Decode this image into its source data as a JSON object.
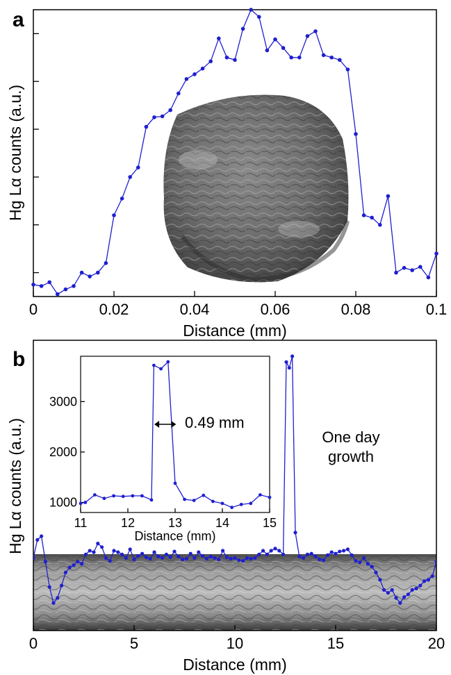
{
  "panel_a": {
    "label": "a",
    "chart_ylabel": "Hg Lα counts (a.u.)",
    "xlabel": "Distance (mm)"
  },
  "panel_b": {
    "label": "b",
    "ylabel": "Hg Lα counts (a.u.)",
    "xlabel": "Distance (mm)",
    "annotation_line1": "One day",
    "annotation_line2": "growth",
    "inset_xlabel": "Distance (mm)",
    "inset_width_label": "0.49 mm"
  },
  "colors": {
    "series": "#1f1fd0",
    "axis": "#000000"
  },
  "chart_data": [
    {
      "type": "line",
      "panel": "a",
      "xlabel": "Distance (mm)",
      "ylabel": "Hg Lα counts (a.u.)",
      "xlim": [
        0,
        0.1
      ],
      "ylim": [
        0,
        6
      ],
      "y_tick_labels_shown": false,
      "x_ticks": [
        0,
        0.02,
        0.04,
        0.06,
        0.08,
        0.1
      ],
      "x_tick_labels": [
        "0",
        "0.02",
        "0.04",
        "0.06",
        "0.08",
        "0.1"
      ],
      "y_ticks": [
        0.5,
        1.5,
        2.5,
        3.5,
        4.5,
        5.5
      ],
      "series": [
        {
          "x": [
            0.0,
            0.002,
            0.004,
            0.006,
            0.008,
            0.01,
            0.012,
            0.014,
            0.016,
            0.018,
            0.02,
            0.022,
            0.024,
            0.026,
            0.028,
            0.03,
            0.032,
            0.034,
            0.036,
            0.038,
            0.04,
            0.042,
            0.044,
            0.046,
            0.048,
            0.05,
            0.052,
            0.054,
            0.056,
            0.058,
            0.06,
            0.062,
            0.064,
            0.066,
            0.068,
            0.07,
            0.072,
            0.074,
            0.076,
            0.078,
            0.08,
            0.082,
            0.084,
            0.086,
            0.088,
            0.09,
            0.092,
            0.094,
            0.096,
            0.098,
            0.1
          ],
          "y": [
            0.25,
            0.22,
            0.3,
            0.05,
            0.15,
            0.22,
            0.5,
            0.42,
            0.5,
            0.7,
            1.7,
            2.05,
            2.5,
            2.7,
            3.55,
            3.75,
            3.77,
            3.9,
            4.25,
            4.55,
            4.65,
            4.77,
            4.92,
            5.4,
            5.0,
            4.95,
            5.6,
            6.0,
            5.85,
            5.15,
            5.38,
            5.2,
            5.0,
            5.0,
            5.45,
            5.55,
            5.05,
            5.0,
            4.95,
            4.75,
            3.4,
            1.7,
            1.65,
            1.5,
            2.1,
            0.5,
            0.6,
            0.55,
            0.62,
            0.4,
            0.9
          ]
        }
      ]
    },
    {
      "type": "line",
      "panel": "b",
      "xlabel": "Distance (mm)",
      "ylabel": "Hg Lα counts (a.u.)",
      "xlim": [
        0,
        20
      ],
      "ylim": [
        0,
        4000
      ],
      "y_tick_labels_shown": false,
      "x_ticks": [
        0,
        5,
        10,
        15,
        20
      ],
      "x_tick_labels": [
        "0",
        "5",
        "10",
        "15",
        "20"
      ],
      "series": [
        {
          "x": [
            0.0,
            0.2,
            0.4,
            0.6,
            0.8,
            1.0,
            1.2,
            1.4,
            1.6,
            1.8,
            2.0,
            2.2,
            2.4,
            2.6,
            2.8,
            3.0,
            3.2,
            3.4,
            3.6,
            3.8,
            4.0,
            4.2,
            4.4,
            4.6,
            4.8,
            5.0,
            5.2,
            5.4,
            5.6,
            5.8,
            6.0,
            6.2,
            6.4,
            6.6,
            6.8,
            7.0,
            7.2,
            7.4,
            7.6,
            7.8,
            8.0,
            8.2,
            8.4,
            8.6,
            8.8,
            9.0,
            9.2,
            9.4,
            9.6,
            9.8,
            10.0,
            10.2,
            10.4,
            10.6,
            10.8,
            11.0,
            11.2,
            11.4,
            11.6,
            11.8,
            12.0,
            12.2,
            12.4,
            12.55,
            12.7,
            12.85,
            13.0,
            13.2,
            13.4,
            13.6,
            13.8,
            14.0,
            14.2,
            14.4,
            14.6,
            14.8,
            15.0,
            15.2,
            15.4,
            15.6,
            15.8,
            16.0,
            16.2,
            16.4,
            16.6,
            16.8,
            17.0,
            17.2,
            17.4,
            17.6,
            17.8,
            18.0,
            18.2,
            18.4,
            18.6,
            18.8,
            19.0,
            19.2,
            19.4,
            19.6,
            19.8,
            20.0
          ],
          "y": [
            1000,
            1250,
            1300,
            950,
            600,
            380,
            450,
            620,
            800,
            870,
            900,
            950,
            920,
            1050,
            1100,
            1080,
            1200,
            1150,
            1000,
            960,
            1100,
            1080,
            1050,
            1000,
            1120,
            980,
            1030,
            1060,
            1010,
            990,
            1080,
            1020,
            1000,
            1050,
            1010,
            1090,
            1020,
            980,
            990,
            1060,
            1000,
            1080,
            1030,
            990,
            1020,
            1000,
            980,
            1100,
            1010,
            990,
            1000,
            970,
            960,
            1000,
            990,
            1000,
            1050,
            1100,
            1050,
            1100,
            1130,
            1100,
            1050,
            3700,
            3620,
            3780,
            1350,
            1020,
            1000,
            1050,
            1060,
            1020,
            980,
            970,
            1040,
            1080,
            1060,
            1090,
            1100,
            1120,
            1040,
            960,
            940,
            1000,
            920,
            880,
            800,
            700,
            560,
            520,
            560,
            450,
            380,
            460,
            500,
            560,
            580,
            620,
            680,
            700,
            750,
            950
          ]
        }
      ]
    },
    {
      "type": "line",
      "panel": "b-inset",
      "xlabel": "Distance (mm)",
      "ylabel": "",
      "xlim": [
        11,
        15
      ],
      "ylim": [
        800,
        3900
      ],
      "x_ticks": [
        11,
        12,
        13,
        14,
        15
      ],
      "x_tick_labels": [
        "11",
        "12",
        "13",
        "14",
        "15"
      ],
      "y_ticks": [
        1000,
        2000,
        3000
      ],
      "y_tick_labels": [
        "1000",
        "2000",
        "3000"
      ],
      "annotation": "0.49 mm",
      "series": [
        {
          "x": [
            11.0,
            11.1,
            11.3,
            11.5,
            11.7,
            11.9,
            12.1,
            12.3,
            12.5,
            12.55,
            12.7,
            12.85,
            13.0,
            13.2,
            13.4,
            13.6,
            13.8,
            14.0,
            14.2,
            14.4,
            14.6,
            14.8,
            15.0
          ],
          "y": [
            980,
            1000,
            1150,
            1080,
            1130,
            1120,
            1130,
            1130,
            1050,
            3720,
            3650,
            3790,
            1380,
            1060,
            1040,
            1140,
            1020,
            980,
            900,
            960,
            980,
            1150,
            1100
          ]
        }
      ]
    }
  ]
}
